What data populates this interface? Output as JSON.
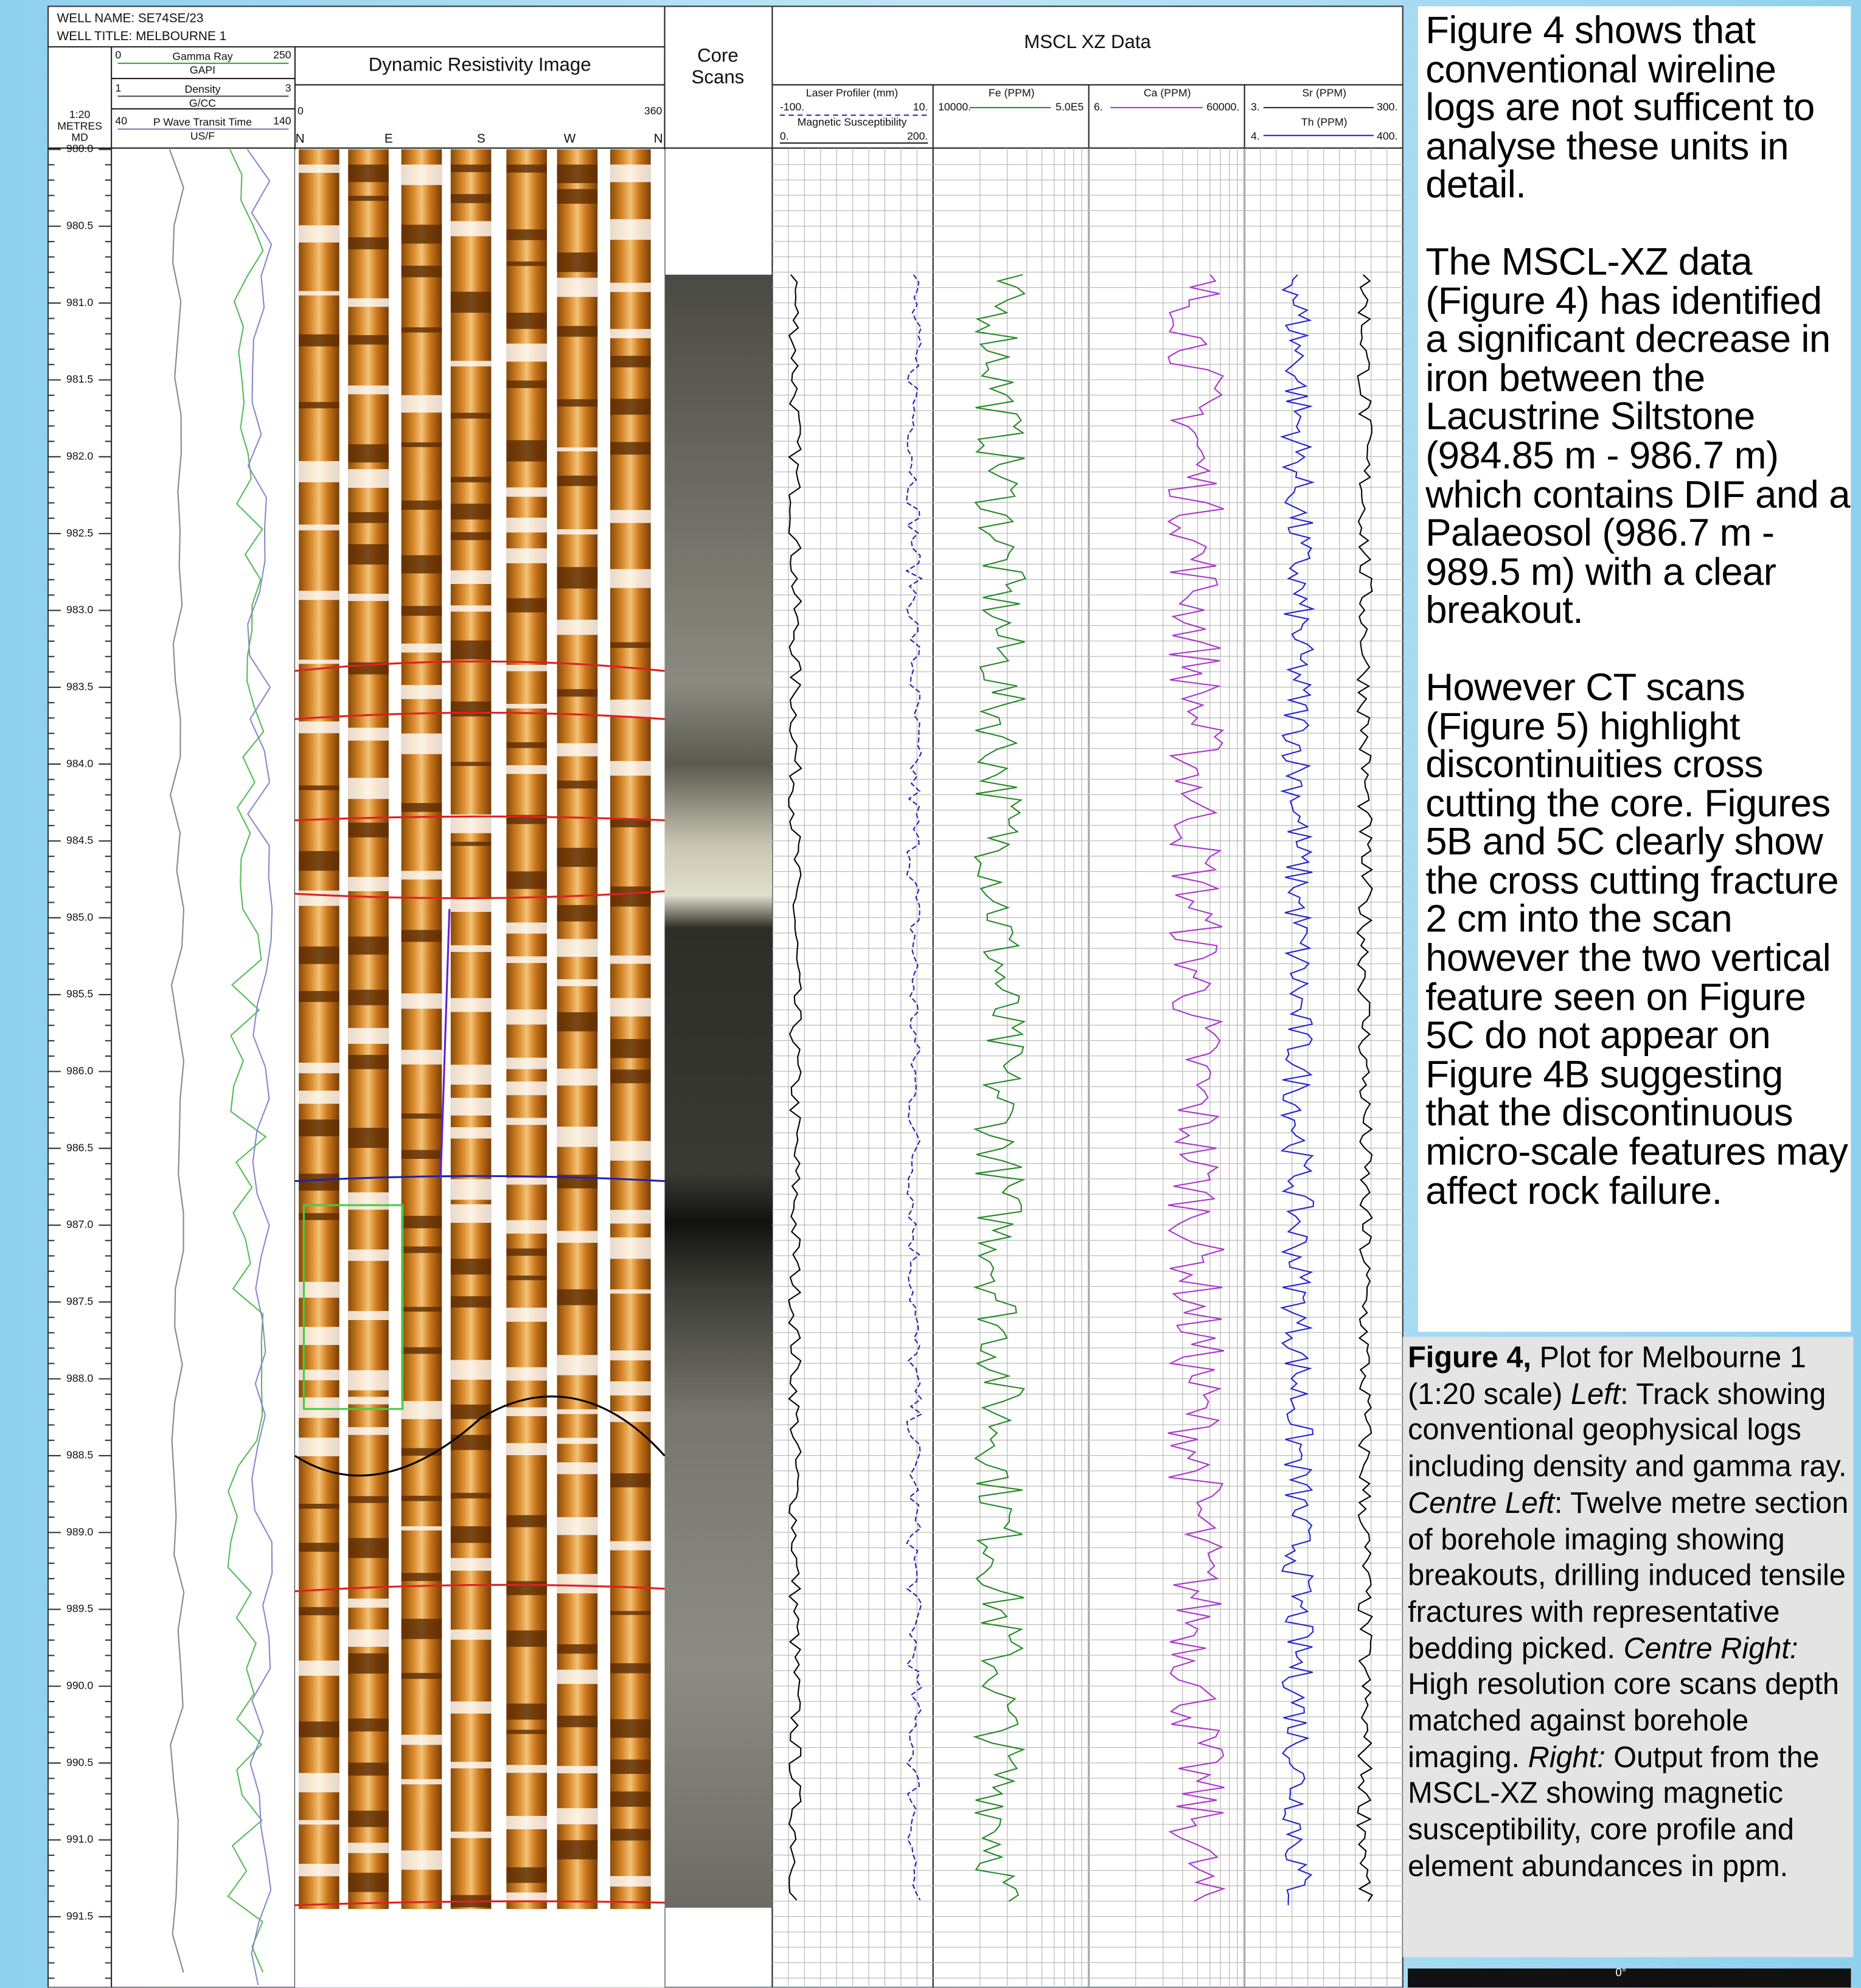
{
  "header": {
    "well_name": "WELL NAME: SE74SE/23",
    "well_title": "WELL TITLE: MELBOURNE 1"
  },
  "depth_track": {
    "scale": "1:20",
    "unit": "METRES",
    "ref": "MD",
    "labels": [
      "980.0",
      "980.5",
      "981.0",
      "981.5",
      "982.0",
      "982.5",
      "983.0",
      "983.5",
      "984.0",
      "984.5",
      "985.0",
      "985.5",
      "986.0",
      "986.5",
      "987.0",
      "987.5",
      "988.0",
      "988.5",
      "989.0",
      "989.5",
      "990.0",
      "990.5",
      "991.0",
      "991.5"
    ]
  },
  "log_track": {
    "curves": [
      {
        "name": "Gamma Ray",
        "min": "0",
        "max": "250",
        "unit": "GAPI"
      },
      {
        "name": "Density",
        "min": "1",
        "max": "3",
        "unit": "G/CC"
      },
      {
        "name": "P Wave Transit Time",
        "min": "40",
        "max": "140",
        "unit": "US/F"
      }
    ]
  },
  "image_track": {
    "title": "Dynamic Resistivity Image",
    "min": "0",
    "max": "360",
    "azimuths": [
      "N",
      "E",
      "S",
      "W",
      "N"
    ]
  },
  "core_track": {
    "title": "Core Scans"
  },
  "mscl": {
    "title": "MSCL XZ Data",
    "curves": [
      {
        "name": "Laser Profiler (mm)",
        "min": "-100.",
        "max": "10."
      },
      {
        "name": "Magnetic Susceptibility",
        "min": "0.",
        "max": "200."
      },
      {
        "name": "Fe (PPM)",
        "min": "10000.",
        "max": "5.0E5"
      },
      {
        "name": "Ca (PPM)",
        "min": "6.",
        "max": "60000."
      },
      {
        "name": "Sr (PPM)",
        "min": "3.",
        "max": "300."
      },
      {
        "name": "Th (PPM)",
        "min": "4.",
        "max": "400."
      }
    ]
  },
  "text_panel": {
    "paragraphs": [
      "Figure 4 shows that conventional wireline logs are not sufficent to analyse these units in detail.",
      "The MSCL-XZ data (Figure 4) has identified a significant decrease in iron between the Lacustrine Siltstone (984.85 m - 986.7 m) which contains DIF and a Palaeosol (986.7 m - 989.5 m) with a clear breakout.",
      "However CT scans (Figure 5) highlight discontinuities cross cutting the core. Figures 5B and 5C clearly show the cross cutting fracture 2 cm into the scan however the two vertical feature seen on Figure 5C do not appear on Figure 4B suggesting that the discontinuous micro-scale features may affect rock failure."
    ]
  },
  "caption": {
    "runs": [
      "Figure 4,",
      " Plot for Melbourne 1 (1:20 scale)  ",
      "Left",
      ": Track showing conventional geophysical logs including density and gamma ray. ",
      "Centre Left",
      ": Twelve metre section of borehole imaging showing breakouts, drilling induced tensile fractures with representative bedding picked. ",
      "Centre Right:",
      " High resolution core scans depth matched against borehole imaging. ",
      "Right:",
      " Output from the MSCL-XZ showing magnetic susceptibility, core profile and element abundances in ppm."
    ]
  },
  "inset_label": "0°"
}
